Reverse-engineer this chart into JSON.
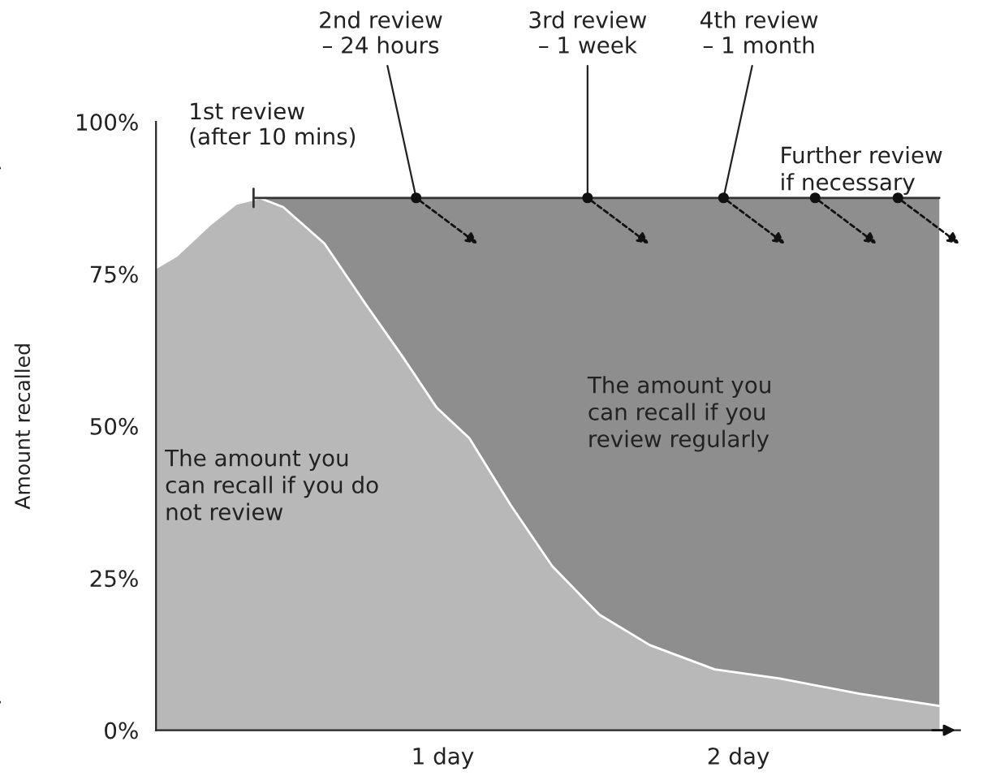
{
  "chart_data": {
    "type": "area",
    "ylabel": "Amount recalled",
    "xlim": [
      0.03,
      2.75
    ],
    "ylim": [
      0,
      100
    ],
    "xticks": [
      {
        "value": 1,
        "label": "1 day"
      },
      {
        "value": 2,
        "label": "2 day"
      }
    ],
    "yticks": [
      {
        "value": 0,
        "label": "0%"
      },
      {
        "value": 25,
        "label": "25%"
      },
      {
        "value": 50,
        "label": "50%"
      },
      {
        "value": 75,
        "label": "75%"
      },
      {
        "value": 100,
        "label": "100%"
      }
    ],
    "grid": false,
    "series": [
      {
        "color": "#8e8e8e",
        "x": [
          0.36,
          2.68
        ],
        "values": [
          87.5,
          87.5
        ]
      },
      {
        "color": "#b8b8b8",
        "x": [
          0.03,
          0.1,
          0.21,
          0.3,
          0.38,
          0.46,
          0.6,
          0.74,
          0.87,
          0.98,
          1.09,
          1.23,
          1.37,
          1.53,
          1.7,
          1.92,
          2.14,
          2.41,
          2.68
        ],
        "values": [
          76,
          78,
          83,
          86.5,
          87.5,
          86,
          80,
          70,
          61,
          53,
          48,
          37,
          27,
          19,
          14,
          10,
          8.5,
          6,
          4
        ]
      },
      {
        "type": "scatter",
        "color": "#111111",
        "marker": "circle",
        "x": [
          0.91,
          1.49,
          1.95,
          2.26,
          2.54
        ],
        "values": [
          87.5,
          87.5,
          87.5,
          87.5,
          87.5
        ]
      }
    ],
    "annotations": [
      {
        "text": "1st review\n(after 10 mins)",
        "x": 0.36,
        "y": 87.5
      },
      {
        "text": "2nd review\n– 24 hours",
        "x": 0.91,
        "y": 87.5
      },
      {
        "text": "3rd review\n– 1 week",
        "x": 1.49,
        "y": 87.5
      },
      {
        "text": "4th review\n– 1 month",
        "x": 1.95,
        "y": 87.5
      },
      "Further review\nif necessary",
      "The amount you\ncan recall if you\nreview regularly",
      "The amount you\ncan recall if you do\nnot review"
    ]
  }
}
